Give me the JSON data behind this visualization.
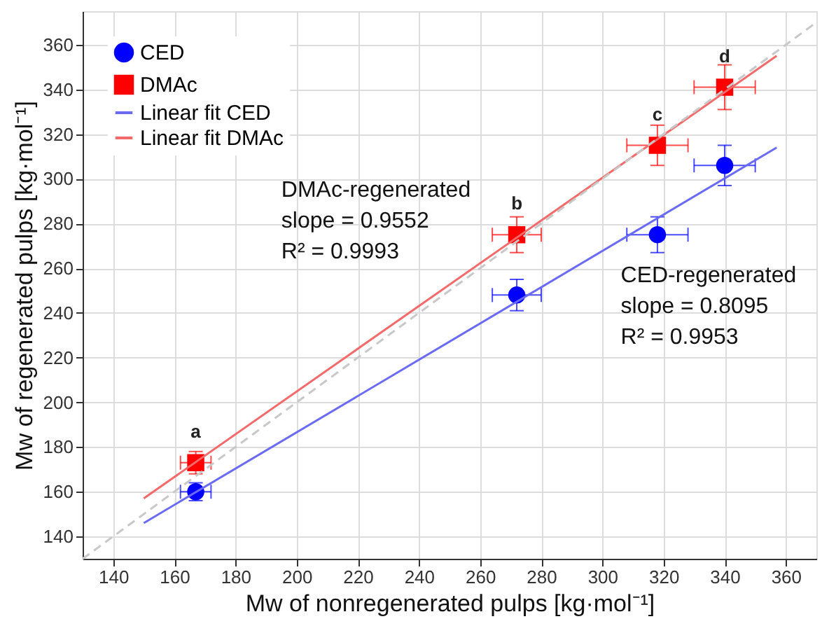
{
  "chart_data": {
    "type": "scatter",
    "xlabel": "Mw of nonregenerated pulps [kg·mol⁻¹]",
    "ylabel": "Mw of regenerated pulps [kg·mol⁻¹]",
    "x": [
      167,
      272,
      318,
      340
    ],
    "series": [
      {
        "name": "CED",
        "color": "#0000ff",
        "marker": "circle",
        "values": [
          160,
          248,
          275,
          306
        ],
        "errors": [
          4,
          7,
          8,
          9
        ],
        "xerrors": [
          5,
          8,
          10,
          10
        ]
      },
      {
        "name": "DMAc",
        "color": "#ff0000",
        "marker": "square",
        "values": [
          173,
          275,
          315,
          341
        ],
        "errors": [
          5,
          8,
          9,
          10
        ],
        "xerrors": [
          5,
          8,
          10,
          10
        ]
      },
      {
        "name": "Linear fit CED",
        "type": "line",
        "color": "#6a6af5",
        "x": [
          150,
          357
        ],
        "values": [
          146,
          314
        ]
      },
      {
        "name": "Linear fit DMAc",
        "type": "line",
        "color": "#f46a6a",
        "x": [
          150,
          357
        ],
        "values": [
          157,
          355
        ]
      },
      {
        "type": "line",
        "color": "#c8c8c8",
        "line_style": "dashed",
        "x": [
          130,
          370
        ],
        "values": [
          130,
          370
        ]
      }
    ],
    "annotations": [
      {
        "text": "a",
        "x": 167,
        "y": 173
      },
      {
        "text": "b",
        "x": 272,
        "y": 275
      },
      {
        "text": "c",
        "x": 318,
        "y": 315
      },
      {
        "text": "d",
        "x": 340,
        "y": 341
      },
      "DMAc-regenerated\nslope = 0.9552\nR² = 0.9993",
      "CED-regenerated\nslope = 0.8095\nR² = 0.9953"
    ],
    "xlim": [
      130,
      370
    ],
    "ylim": [
      130,
      375
    ],
    "xticks": [
      140,
      160,
      180,
      200,
      220,
      240,
      260,
      280,
      300,
      320,
      340,
      360
    ],
    "yticks": [
      140,
      160,
      180,
      200,
      220,
      240,
      260,
      280,
      300,
      320,
      340,
      360
    ],
    "grid": true,
    "legend": "top left"
  }
}
